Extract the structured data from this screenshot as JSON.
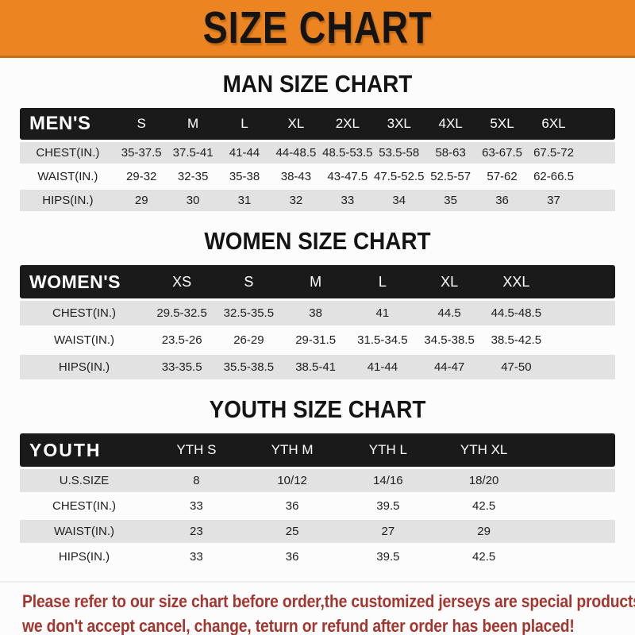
{
  "banner": {
    "title": "SIZE CHART"
  },
  "sections": [
    {
      "heading": "MAN SIZE CHART",
      "table": {
        "header_label": "MEN'S",
        "columns": [
          "S",
          "M",
          "L",
          "XL",
          "2XL",
          "3XL",
          "4XL",
          "5XL",
          "6XL"
        ],
        "rows": [
          {
            "label": "CHEST(IN.)",
            "values": [
              "35-37.5",
              "37.5-41",
              "41-44",
              "44-48.5",
              "48.5-53.5",
              "53.5-58",
              "58-63",
              "63-67.5",
              "67.5-72"
            ]
          },
          {
            "label": "WAIST(IN.)",
            "values": [
              "29-32",
              "32-35",
              "35-38",
              "38-43",
              "43-47.5",
              "47.5-52.5",
              "52.5-57",
              "57-62",
              "62-66.5"
            ]
          },
          {
            "label": "HIPS(IN.)",
            "values": [
              "29",
              "30",
              "31",
              "32",
              "33",
              "34",
              "35",
              "36",
              "37"
            ]
          }
        ]
      }
    },
    {
      "heading": "WOMEN SIZE CHART",
      "table": {
        "header_label": "WOMEN'S",
        "columns": [
          "XS",
          "S",
          "M",
          "L",
          "XL",
          "XXL"
        ],
        "rows": [
          {
            "label": "CHEST(IN.)",
            "values": [
              "29.5-32.5",
              "32.5-35.5",
              "38",
              "41",
              "44.5",
              "44.5-48.5"
            ]
          },
          {
            "label": "WAIST(IN.)",
            "values": [
              "23.5-26",
              "26-29",
              "29-31.5",
              "31.5-34.5",
              "34.5-38.5",
              "38.5-42.5"
            ]
          },
          {
            "label": "HIPS(IN.)",
            "values": [
              "33-35.5",
              "35.5-38.5",
              "38.5-41",
              "41-44",
              "44-47",
              "47-50"
            ]
          }
        ]
      }
    },
    {
      "heading": "YOUTH SIZE CHART",
      "table": {
        "header_label": "YOUTH",
        "columns": [
          "YTH S",
          "YTH M",
          "YTH L",
          "YTH XL"
        ],
        "rows": [
          {
            "label": "U.S.SIZE",
            "values": [
              "8",
              "10/12",
              "14/16",
              "18/20"
            ]
          },
          {
            "label": "CHEST(IN.)",
            "values": [
              "33",
              "36",
              "39.5",
              "42.5"
            ]
          },
          {
            "label": "WAIST(IN.)",
            "values": [
              "23",
              "25",
              "27",
              "29"
            ]
          },
          {
            "label": "HIPS(IN.)",
            "values": [
              "33",
              "36",
              "39.5",
              "42.5"
            ]
          }
        ]
      }
    }
  ],
  "note": {
    "line1": "Please refer to our size chart before order,the customized jerseys are special products,",
    "line2": "we don't accept cancel, change, teturn or refund after order has been placed!"
  },
  "colors": {
    "banner_orange": "#EC8521",
    "banner_edge": "#C96F15",
    "table_header_black": "#1A1A1A",
    "row_gray": "#E2E2E2",
    "note_red": "#A23730"
  }
}
